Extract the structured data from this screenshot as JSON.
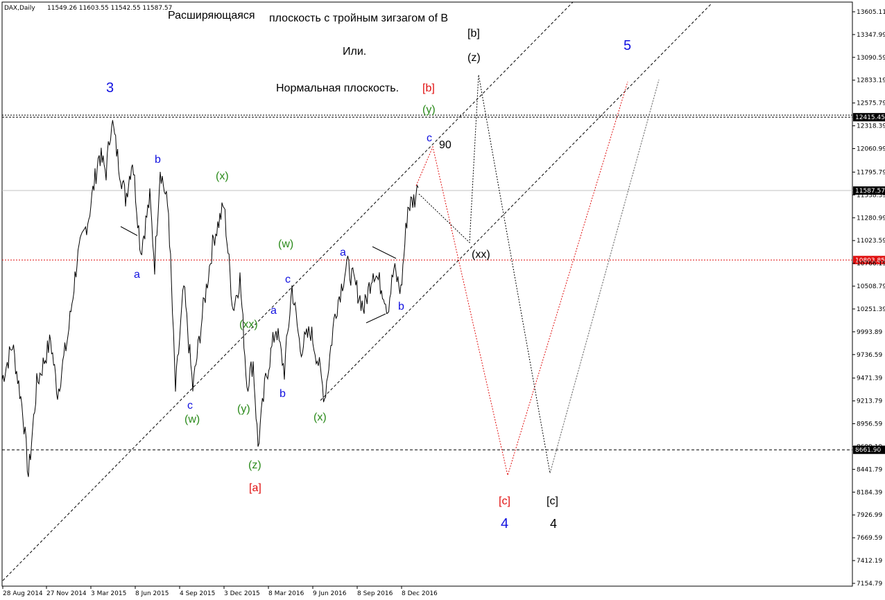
{
  "header": {
    "symbol": "DAX,Daily",
    "ohlc": "11549.26 11603.55 11542.55 11587.57"
  },
  "titles": {
    "line1a": "Расширяющаяся",
    "line1b": "плоскость с тройным зигзагом of B",
    "line2": "Или.",
    "line3": "Нормальная плоскость.",
    "line3_tag": "[b]"
  },
  "colors": {
    "blue": "#1010e0",
    "green": "#2a8a1a",
    "red": "#e01010",
    "black": "#000000",
    "price_line": "#c0c0c0",
    "red_level": "#e01010"
  },
  "chart_data": {
    "type": "line",
    "title": "",
    "xlabel": "",
    "ylabel": "",
    "ylim": [
      7154.79,
      13605.11
    ],
    "x_ticks": [
      "28 Aug 2014",
      "27 Nov 2014",
      "3 Mar 2015",
      "8 Jun 2015",
      "4 Sep 2015",
      "3 Dec 2015",
      "8 Mar 2016",
      "9 Jun 2016",
      "8 Sep 2016",
      "8 Dec 2016"
    ],
    "y_ticks": [
      "13605.11",
      "13347.99",
      "13090.59",
      "12833.19",
      "12575.79",
      "12318.39",
      "12060.99",
      "11795.79",
      "11538.39",
      "11280.99",
      "11023.59",
      "10766.19",
      "10508.79",
      "10251.39",
      "9993.89",
      "9736.59",
      "9471.39",
      "9213.79",
      "8956.59",
      "8699.19",
      "8441.79",
      "8184.39",
      "7926.99",
      "7669.59",
      "7412.19",
      "7154.79"
    ],
    "levels": [
      {
        "value": 12415.45,
        "label": "12415.45",
        "style": "black-dotted"
      },
      {
        "value": 11587.57,
        "label": "11587.57",
        "style": "gray-solid"
      },
      {
        "value": 10803.85,
        "label": "10803.85",
        "style": "red-dotted"
      },
      {
        "value": 8661.9,
        "label": "8661.90",
        "style": "black-dashed"
      }
    ],
    "price_path": [
      {
        "x": 0,
        "y": 9450
      },
      {
        "x": 15,
        "y": 9850
      },
      {
        "x": 30,
        "y": 9100
      },
      {
        "x": 38,
        "y": 8370
      },
      {
        "x": 50,
        "y": 9400
      },
      {
        "x": 70,
        "y": 9900
      },
      {
        "x": 80,
        "y": 9300
      },
      {
        "x": 95,
        "y": 9950
      },
      {
        "x": 108,
        "y": 10800
      },
      {
        "x": 125,
        "y": 11300
      },
      {
        "x": 140,
        "y": 12000
      },
      {
        "x": 150,
        "y": 11800
      },
      {
        "x": 158,
        "y": 12400
      },
      {
        "x": 168,
        "y": 11900
      },
      {
        "x": 178,
        "y": 11500
      },
      {
        "x": 188,
        "y": 11950
      },
      {
        "x": 200,
        "y": 10900
      },
      {
        "x": 213,
        "y": 11500
      },
      {
        "x": 220,
        "y": 10750
      },
      {
        "x": 228,
        "y": 11850
      },
      {
        "x": 240,
        "y": 11350
      },
      {
        "x": 250,
        "y": 9330
      },
      {
        "x": 262,
        "y": 10500
      },
      {
        "x": 275,
        "y": 9350
      },
      {
        "x": 290,
        "y": 10250
      },
      {
        "x": 305,
        "y": 11050
      },
      {
        "x": 320,
        "y": 11420
      },
      {
        "x": 333,
        "y": 10250
      },
      {
        "x": 343,
        "y": 10600
      },
      {
        "x": 353,
        "y": 9400
      },
      {
        "x": 362,
        "y": 9650
      },
      {
        "x": 369,
        "y": 8700
      },
      {
        "x": 380,
        "y": 9450
      },
      {
        "x": 395,
        "y": 10050
      },
      {
        "x": 407,
        "y": 9550
      },
      {
        "x": 418,
        "y": 10500
      },
      {
        "x": 430,
        "y": 9800
      },
      {
        "x": 445,
        "y": 10000
      },
      {
        "x": 456,
        "y": 9650
      },
      {
        "x": 465,
        "y": 9250
      },
      {
        "x": 480,
        "y": 10200
      },
      {
        "x": 497,
        "y": 10760
      },
      {
        "x": 510,
        "y": 10500
      },
      {
        "x": 522,
        "y": 10250
      },
      {
        "x": 535,
        "y": 10700
      },
      {
        "x": 550,
        "y": 10450
      },
      {
        "x": 556,
        "y": 10250
      },
      {
        "x": 565,
        "y": 10700
      },
      {
        "x": 575,
        "y": 10450
      },
      {
        "x": 585,
        "y": 11400
      },
      {
        "x": 595,
        "y": 11500
      },
      {
        "x": 600,
        "y": 11620
      }
    ]
  },
  "labels": {
    "wave_3": "3",
    "b_upper": "b",
    "a_upper": "a",
    "x_upper": "(x)",
    "w_mid": "(w)",
    "a_mid": "a",
    "c_mid": "c",
    "a_low": "a",
    "xx_mid": "(xx)",
    "c_low": "c",
    "w_low": "(w)",
    "y_low": "(y)",
    "b_low1": "b",
    "x_low": "(x)",
    "z_low": "(z)",
    "a_bracket": "[a]",
    "b_right": "b",
    "y_top": "(y)",
    "c_top": "c",
    "ninety": "90",
    "b_bracket": "[b]",
    "z_top": "(z)",
    "xx_right": "(xx)",
    "c_bracket_red": "[c]",
    "four_blue": "4",
    "c_bracket_black": "[c]",
    "four_black": "4",
    "five_blue": "5"
  }
}
